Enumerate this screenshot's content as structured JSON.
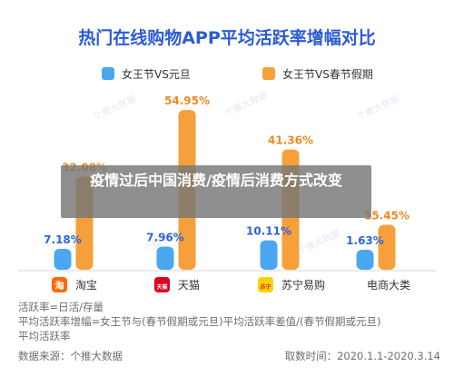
{
  "chart_data": {
    "type": "bar",
    "title": "热门在线购物APP平均活跃率增幅对比",
    "categories": [
      "淘宝",
      "天猫",
      "苏宁易购",
      "电商大类"
    ],
    "series": [
      {
        "name": "女王节VS元旦",
        "values": [
          7.18,
          7.96,
          10.11,
          1.63
        ],
        "labels": [
          "7.18%",
          "7.96%",
          "10.11%",
          "1.63%"
        ]
      },
      {
        "name": "女王节VS春节假期",
        "values": [
          32.08,
          54.95,
          41.36,
          15.45
        ],
        "labels": [
          "32.08%",
          "54.95%",
          "41.36%",
          "15.45%"
        ]
      }
    ],
    "ylim": [
      0,
      60
    ],
    "legend_position": "top",
    "grid": false
  },
  "colors": {
    "title": "#2b5bd6",
    "series1": "#4aa7f0",
    "series2": "#f5a03a",
    "label1": "#2b66d9",
    "label2": "#f08a1e"
  },
  "icons": {
    "淘宝": {
      "text": "淘",
      "color": "#ff6a00"
    },
    "天猫": {
      "text": "天猫",
      "color": "#e0001b"
    },
    "苏宁易购": {
      "text": "苏宁",
      "color": "#ffd000"
    },
    "电商大类": {
      "text": "",
      "color": ""
    }
  },
  "watermark": "个推大数据",
  "overlay": {
    "title": "疫情过后中国消费/疫情后消费方式改变"
  },
  "footer": {
    "line1": "活跃率=日活/存量",
    "line2": "平均活跃率增幅=女王节与(春节假期或元旦)平均活跃率差值/(春节假期或元旦)",
    "line3": "平均活跃率",
    "source": "数据来源：个推大数据",
    "date": "取数时间：2020.1.1-2020.3.14"
  }
}
